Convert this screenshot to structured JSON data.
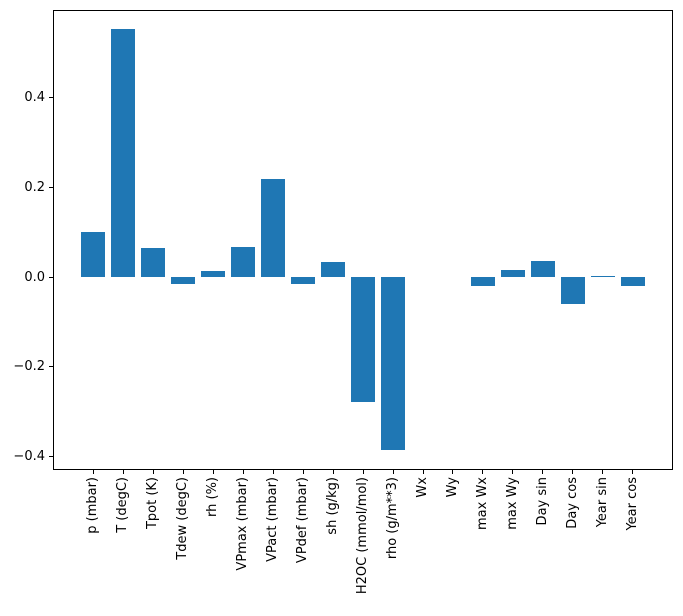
{
  "chart_data": {
    "type": "bar",
    "title": "",
    "xlabel": "",
    "ylabel": "",
    "categories": [
      "p (mbar)",
      "T (degC)",
      "Tpot (K)",
      "Tdew (degC)",
      "rh (%)",
      "VPmax (mbar)",
      "VPact (mbar)",
      "VPdef (mbar)",
      "sh (g/kg)",
      "H2OC (mmol/mol)",
      "rho (g/m**3)",
      "Wx",
      "Wy",
      "max Wx",
      "max Wy",
      "Day sin",
      "Day cos",
      "Year sin",
      "Year cos"
    ],
    "values": [
      0.1,
      0.552,
      0.065,
      -0.016,
      0.014,
      0.068,
      0.219,
      -0.016,
      0.033,
      -0.278,
      -0.385,
      0.0,
      0.0,
      -0.021,
      0.016,
      0.035,
      -0.06,
      0.003,
      -0.019
    ],
    "bar_color": "#1f77b4",
    "ylim": [
      -0.43,
      0.595
    ],
    "xlim": [
      -1.34,
      19.34
    ],
    "yticks": [
      0.4,
      0.2,
      0.0,
      -0.2,
      -0.4
    ],
    "ytick_labels": [
      "0.4",
      "0.2",
      "0.0",
      "−0.2",
      "−0.4"
    ],
    "bar_width_fraction": 0.8,
    "grid": false,
    "legend": null,
    "tick_label_rotation_deg": 90
  }
}
